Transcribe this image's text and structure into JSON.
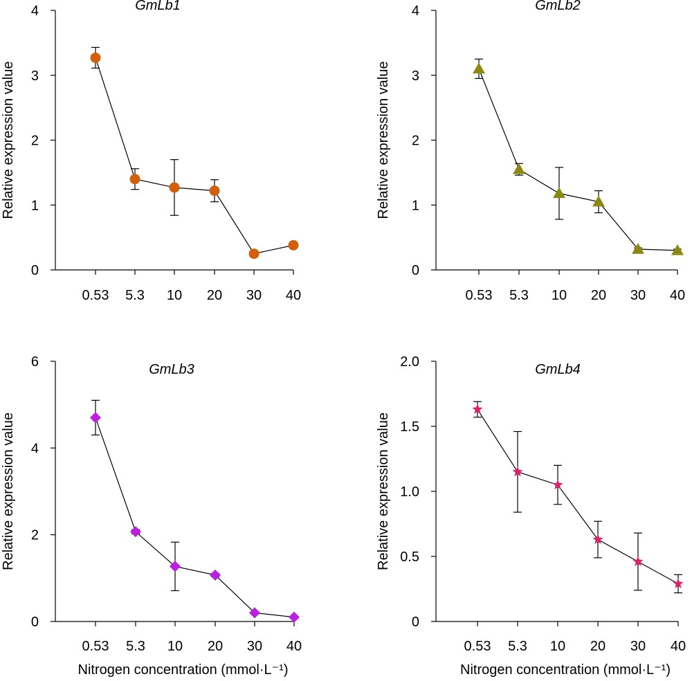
{
  "chart_data": [
    {
      "type": "line",
      "title": "GmLb1",
      "xlabel": "",
      "ylabel": "Relative expression value",
      "categories": [
        "0.53",
        "5.3",
        "10",
        "20",
        "30",
        "40"
      ],
      "ylim": [
        0,
        4
      ],
      "yticks": [
        "0",
        "1",
        "2",
        "3",
        "4"
      ],
      "marker": "circle",
      "color": "#d35f0a",
      "series": [
        {
          "values": [
            3.27,
            1.4,
            1.27,
            1.22,
            0.25,
            0.38
          ],
          "errors": [
            0.16,
            0.16,
            0.43,
            0.17,
            0.04,
            0.03
          ]
        }
      ]
    },
    {
      "type": "line",
      "title": "GmLb2",
      "xlabel": "",
      "ylabel": "Relative expression value",
      "categories": [
        "0.53",
        "5.3",
        "10",
        "20",
        "30",
        "40"
      ],
      "ylim": [
        0,
        4
      ],
      "yticks": [
        "0",
        "1",
        "2",
        "3",
        "4"
      ],
      "marker": "triangle",
      "color": "#8a8a10",
      "series": [
        {
          "values": [
            3.1,
            1.55,
            1.18,
            1.05,
            0.32,
            0.3
          ],
          "errors": [
            0.15,
            0.09,
            0.4,
            0.17,
            0.02,
            0.02
          ]
        }
      ]
    },
    {
      "type": "line",
      "title": "GmLb3",
      "xlabel": "Nitrogen concentration (mmol·L⁻¹)",
      "ylabel": "Relative expression value",
      "categories": [
        "0.53",
        "5.3",
        "10",
        "20",
        "30",
        "40"
      ],
      "ylim": [
        0,
        6
      ],
      "yticks": [
        "0",
        "2",
        "4",
        "6"
      ],
      "marker": "diamond",
      "color": "#bb1fe0",
      "series": [
        {
          "values": [
            4.7,
            2.07,
            1.27,
            1.07,
            0.2,
            0.1
          ],
          "errors": [
            0.4,
            0.05,
            0.56,
            0.04,
            0.02,
            0.02
          ]
        }
      ]
    },
    {
      "type": "line",
      "title": "GmLb4",
      "xlabel": "Nitrogen concentration (mmol·L⁻¹)",
      "ylabel": "Relative expression value",
      "categories": [
        "0.53",
        "5.3",
        "10",
        "20",
        "30",
        "40"
      ],
      "ylim": [
        0,
        2.0
      ],
      "yticks": [
        "0",
        "0.5",
        "1.0",
        "1.5",
        "2.0"
      ],
      "marker": "star",
      "color": "#e0206a",
      "series": [
        {
          "values": [
            1.63,
            1.15,
            1.05,
            0.63,
            0.46,
            0.29
          ],
          "errors": [
            0.06,
            0.31,
            0.15,
            0.14,
            0.22,
            0.07
          ]
        }
      ]
    }
  ]
}
